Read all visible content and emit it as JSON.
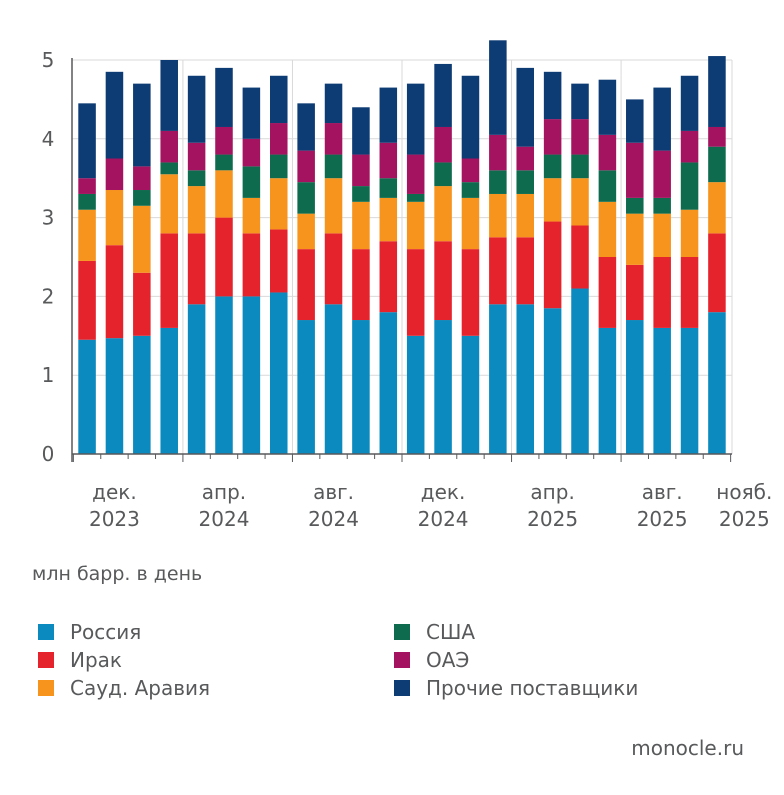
{
  "chart_data": {
    "type": "bar",
    "stacked": true,
    "ylabel": "млн барр. в день",
    "ylim": [
      0,
      5
    ],
    "yticks": [
      "0",
      "1",
      "2",
      "3",
      "4",
      "5"
    ],
    "grid": true,
    "xtick_labels": [
      {
        "line1": "дек.",
        "line2": "2023",
        "bar": 1
      },
      {
        "line1": "апр.",
        "line2": "2024",
        "bar": 5
      },
      {
        "line1": "авг.",
        "line2": "2024",
        "bar": 9
      },
      {
        "line1": "дек.",
        "line2": "2024",
        "bar": 13
      },
      {
        "line1": "апр.",
        "line2": "2025",
        "bar": 17
      },
      {
        "line1": "авг.",
        "line2": "2025",
        "bar": 21
      },
      {
        "line1": "нояб.",
        "line2": "2025",
        "bar": 24
      }
    ],
    "series": [
      {
        "name": "Россия",
        "color": "#0a8abf",
        "values": [
          1.45,
          1.47,
          1.5,
          1.6,
          1.9,
          2.0,
          2.0,
          2.05,
          1.7,
          1.9,
          1.7,
          1.8,
          1.5,
          1.7,
          1.5,
          1.9,
          1.9,
          1.85,
          2.1,
          1.6,
          1.7,
          1.6,
          1.6,
          1.8
        ]
      },
      {
        "name": "Ирак",
        "color": "#e5232d",
        "values": [
          1.0,
          1.18,
          0.8,
          1.2,
          0.9,
          1.0,
          0.8,
          0.8,
          0.9,
          0.9,
          0.9,
          0.9,
          1.1,
          1.0,
          1.1,
          0.85,
          0.85,
          1.1,
          0.8,
          0.9,
          0.7,
          0.9,
          0.9,
          1.0
        ]
      },
      {
        "name": "Сауд. Аравия",
        "color": "#f7941d",
        "values": [
          0.65,
          0.7,
          0.85,
          0.75,
          0.6,
          0.6,
          0.45,
          0.65,
          0.45,
          0.7,
          0.6,
          0.55,
          0.6,
          0.7,
          0.65,
          0.55,
          0.55,
          0.55,
          0.6,
          0.7,
          0.65,
          0.55,
          0.6,
          0.65
        ]
      },
      {
        "name": "США",
        "color": "#0e6b4d",
        "values": [
          0.2,
          0.0,
          0.2,
          0.15,
          0.2,
          0.2,
          0.4,
          0.3,
          0.4,
          0.3,
          0.2,
          0.25,
          0.1,
          0.3,
          0.2,
          0.3,
          0.3,
          0.3,
          0.3,
          0.4,
          0.2,
          0.2,
          0.6,
          0.45
        ]
      },
      {
        "name": "ОАЭ",
        "color": "#a3135f",
        "values": [
          0.2,
          0.4,
          0.3,
          0.4,
          0.35,
          0.35,
          0.35,
          0.4,
          0.4,
          0.4,
          0.4,
          0.45,
          0.5,
          0.45,
          0.3,
          0.45,
          0.3,
          0.45,
          0.45,
          0.45,
          0.7,
          0.6,
          0.4,
          0.25
        ]
      },
      {
        "name": "Прочие поставщики",
        "color": "#0d3b73",
        "values": [
          0.95,
          1.1,
          1.05,
          0.9,
          0.85,
          0.75,
          0.65,
          0.6,
          0.6,
          0.5,
          0.6,
          0.7,
          0.9,
          0.8,
          1.05,
          1.2,
          1.0,
          0.6,
          0.45,
          0.7,
          0.55,
          0.8,
          0.7,
          0.9
        ]
      }
    ]
  },
  "source": "monocle.ru"
}
